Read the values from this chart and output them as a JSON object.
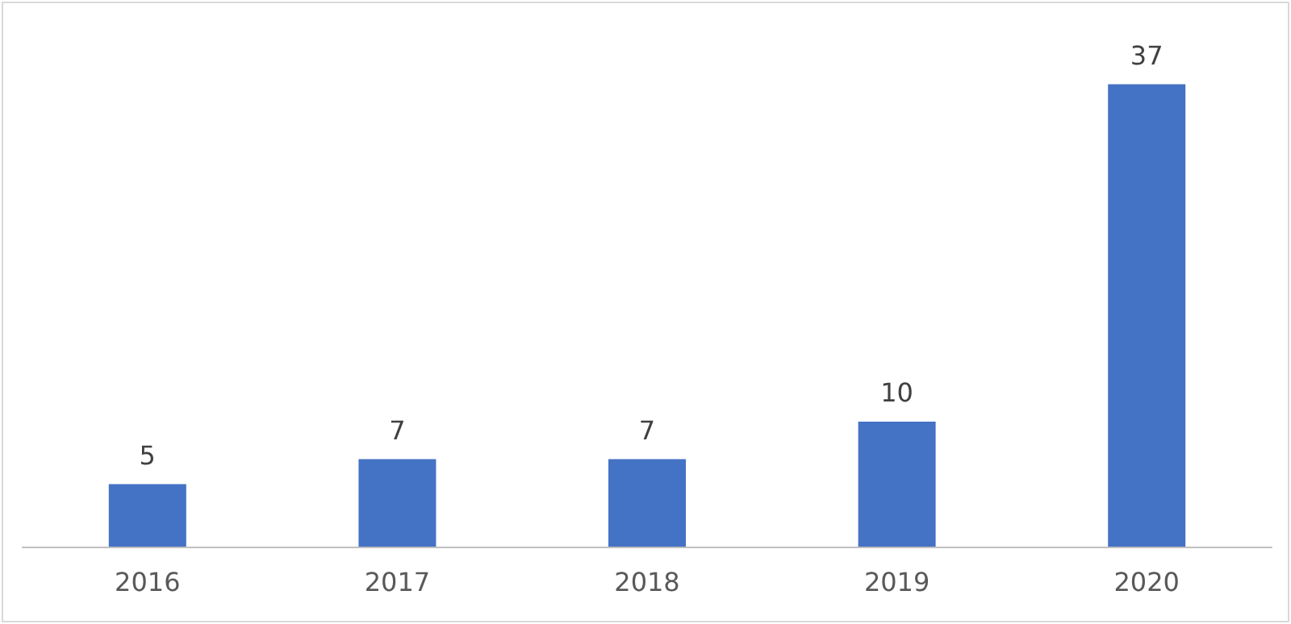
{
  "chart_data": {
    "type": "bar",
    "categories": [
      "2016",
      "2017",
      "2018",
      "2019",
      "2020"
    ],
    "values": [
      5,
      7,
      7,
      10,
      37
    ],
    "color": "#4472c4",
    "data_labels": true
  }
}
